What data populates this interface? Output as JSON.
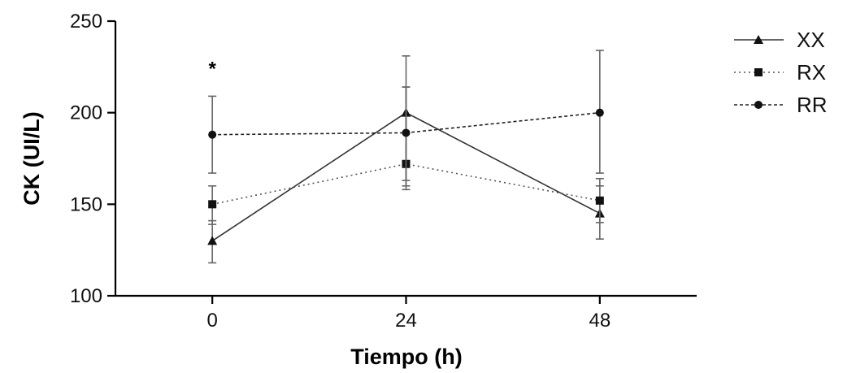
{
  "chart_data": {
    "type": "line",
    "title": "",
    "xlabel": "Tiempo (h)",
    "ylabel": "CK (UI/L)",
    "x": [
      0,
      24,
      48
    ],
    "x_tick_labels": [
      "0",
      "24",
      "48"
    ],
    "xlim": [
      -12,
      60
    ],
    "ylim": [
      100,
      250
    ],
    "y_ticks": [
      100,
      150,
      200,
      250
    ],
    "y_tick_labels": [
      "100",
      "150",
      "200",
      "250"
    ],
    "grid": false,
    "legend_position": "top-right",
    "series": [
      {
        "name": "XX",
        "marker": "triangle",
        "line_style": "solid",
        "color": "#333333",
        "values": [
          130,
          200,
          145
        ],
        "err_low": [
          118,
          158,
          131
        ],
        "err_high": [
          141,
          231,
          160
        ]
      },
      {
        "name": "RX",
        "marker": "square",
        "line_style": "dotted",
        "color": "#555555",
        "values": [
          150,
          172,
          152
        ],
        "err_low": [
          139,
          160,
          140
        ],
        "err_high": [
          160,
          214,
          164
        ]
      },
      {
        "name": "RR",
        "marker": "circle",
        "line_style": "dashed",
        "color": "#222222",
        "values": [
          188,
          189,
          200
        ],
        "err_low": [
          167,
          163,
          167
        ],
        "err_high": [
          209,
          214,
          234
        ]
      }
    ],
    "annotations": [
      {
        "text": "*",
        "x": 0,
        "y": 225
      }
    ]
  }
}
